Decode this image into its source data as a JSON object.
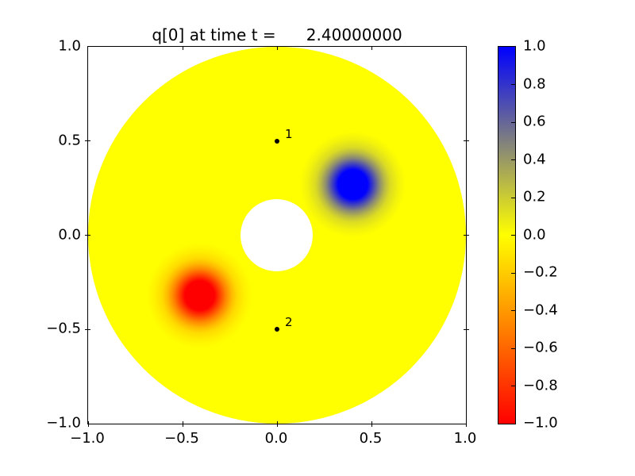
{
  "chart_data": {
    "type": "heatmap",
    "title": "q[0] at time t =      2.40000000",
    "xlabel": "",
    "ylabel": "",
    "xlim": [
      -1.0,
      1.0
    ],
    "ylim": [
      -1.0,
      1.0
    ],
    "grid": false,
    "xticks": [
      "−1.0",
      "−0.5",
      "0.0",
      "0.5",
      "1.0"
    ],
    "yticks": [
      "1.0",
      "0.5",
      "0.0",
      "−0.5",
      "−1.0"
    ],
    "domain_shape": {
      "type": "annulus",
      "center": [
        0.0,
        0.0
      ],
      "inner_radius": 0.2,
      "outer_radius": 1.0
    },
    "field": {
      "background_value": 0.0,
      "blobs": [
        {
          "name": "positive-gaussian-blob",
          "peak_value": 1.0,
          "center_x": 0.4,
          "center_y": 0.27,
          "approx_radius": 0.28
        },
        {
          "name": "negative-gaussian-blob",
          "peak_value": -1.0,
          "center_x": -0.41,
          "center_y": -0.32,
          "approx_radius": 0.28
        }
      ]
    },
    "gauges": [
      {
        "label": "1",
        "x": 0.0,
        "y": 0.5
      },
      {
        "label": "2",
        "x": 0.0,
        "y": -0.5
      }
    ],
    "colorbar": {
      "position": "right",
      "vmin": -1.0,
      "vmax": 1.0,
      "ticks": [
        "1.0",
        "0.8",
        "0.6",
        "0.4",
        "0.2",
        "0.0",
        "−0.2",
        "−0.4",
        "−0.6",
        "−0.8",
        "−1.0"
      ],
      "cmap_stops": [
        {
          "value": 1.0,
          "color": "#0000ff"
        },
        {
          "value": 0.0,
          "color": "#ffff00"
        },
        {
          "value": -1.0,
          "color": "#ff0000"
        }
      ]
    },
    "colors": {
      "field_background": "#ffff00",
      "positive_peak": "#0000ff",
      "negative_peak": "#ff0000",
      "marker": "#000000",
      "axes_edge": "#000000",
      "figure_background": "#ffffff"
    }
  }
}
